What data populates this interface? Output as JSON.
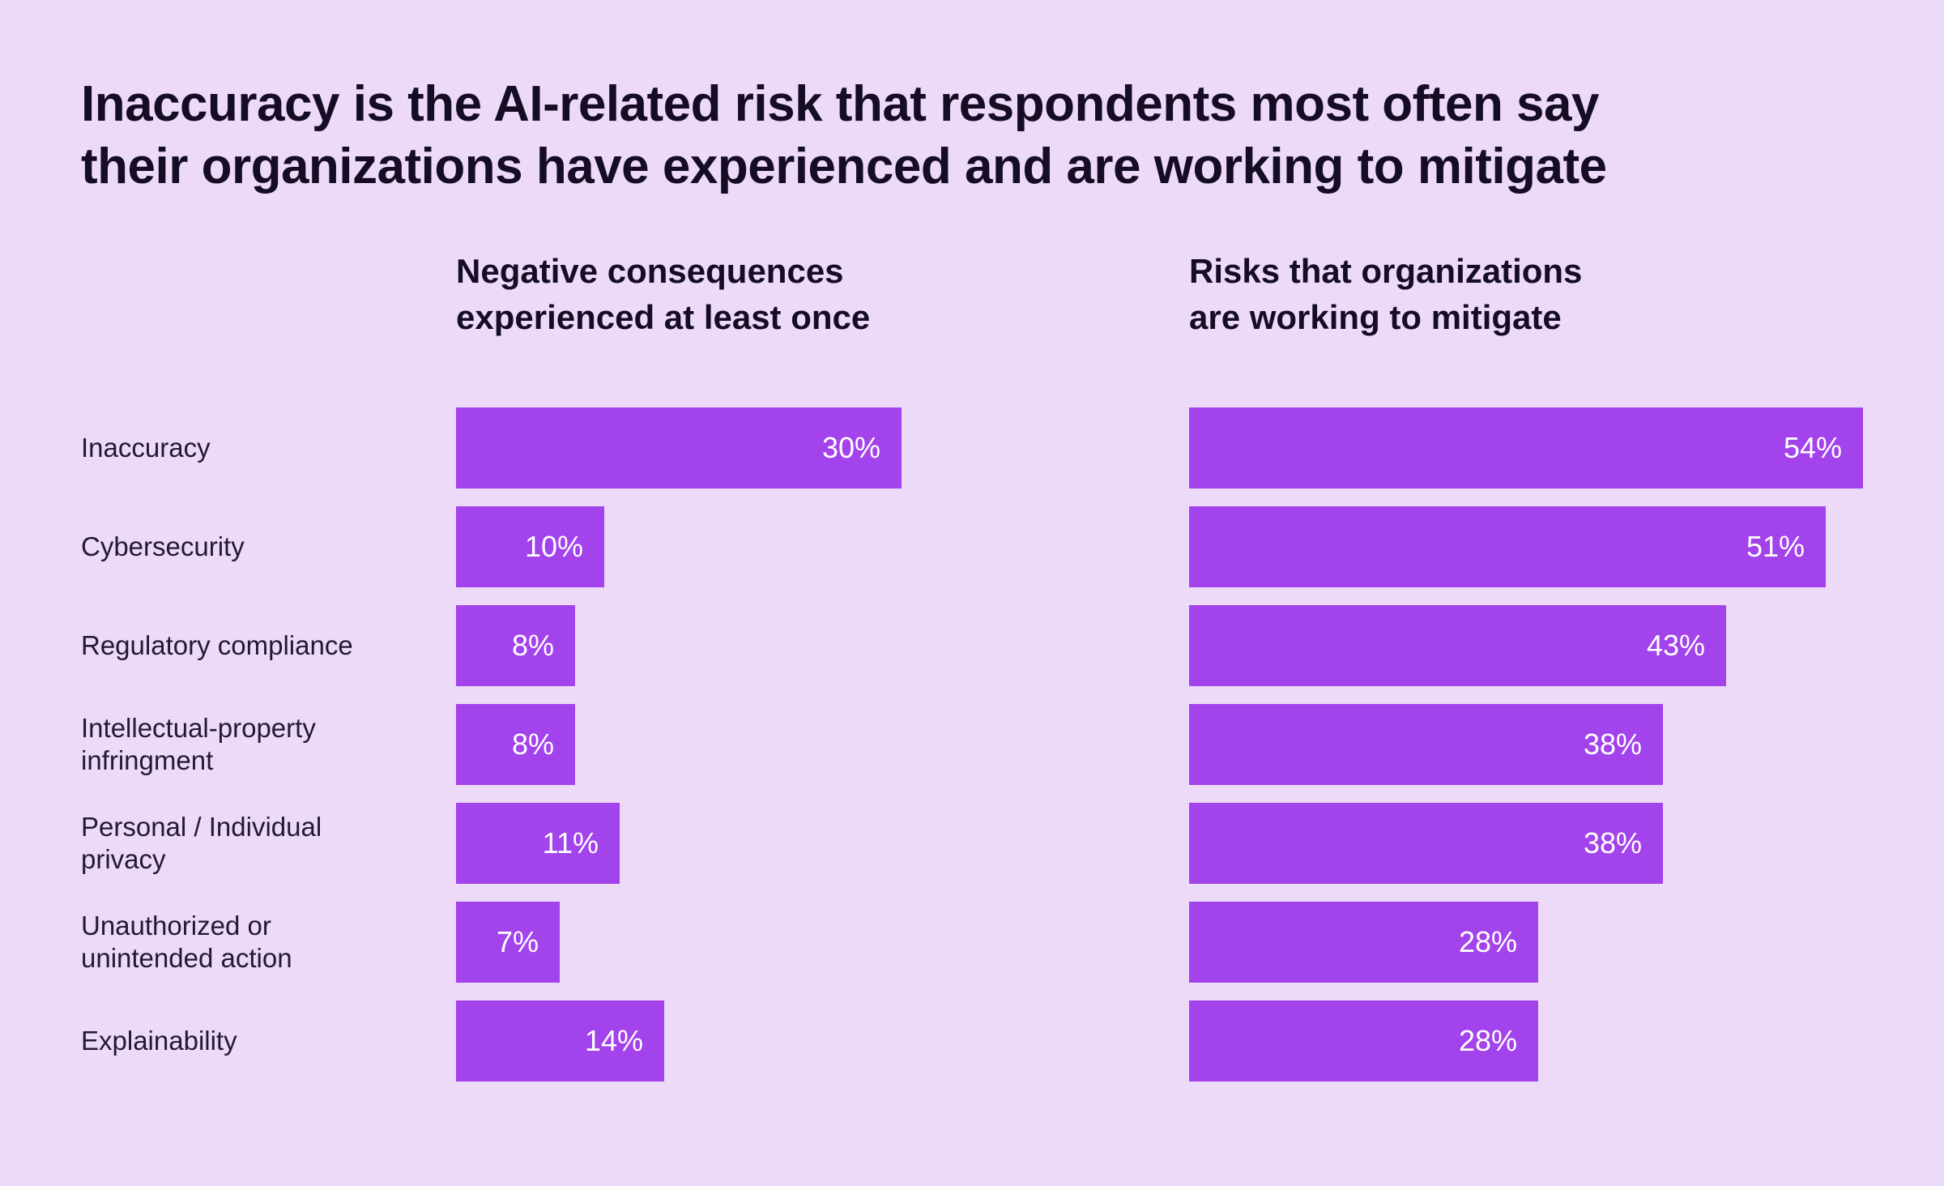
{
  "page": {
    "background_color": "#EDDAF8",
    "bar_color": "#A343EB",
    "text_color": "#150D24",
    "value_text_color": "#FFFFFF"
  },
  "title": {
    "line1": "Inaccuracy is the AI-related risk that respondents most often say",
    "line2": "their organizations have experienced and are working to mitigate"
  },
  "chart_data": {
    "type": "bar",
    "orientation": "horizontal",
    "title": "Inaccuracy is the AI-related risk that respondents most often say their organizations have experienced and are working to mitigate",
    "categories": [
      "Inaccuracy",
      "Cybersecurity",
      "Regulatory compliance",
      "Intellectual-property infringment",
      "Personal / Individual privacy",
      "Unauthorized or unintended action",
      "Explainability"
    ],
    "series": [
      {
        "name": "Negative consequences experienced at least once",
        "header_lines": [
          "Negative consequences",
          "experienced at least once"
        ],
        "values": [
          30,
          10,
          8,
          8,
          11,
          7,
          14
        ],
        "labels": [
          "30%",
          "10%",
          "8%",
          "8%",
          "11%",
          "7%",
          "14%"
        ],
        "axis_range": [
          0,
          30
        ]
      },
      {
        "name": "Risks that organizations are working to mitigate",
        "header_lines": [
          "Risks that organizations",
          "are working to mitigate"
        ],
        "values": [
          54,
          51,
          43,
          38,
          38,
          28,
          28
        ],
        "labels": [
          "54%",
          "51%",
          "43%",
          "38%",
          "38%",
          "28%",
          "28%"
        ],
        "axis_range": [
          0,
          54
        ]
      }
    ],
    "value_suffix": "%",
    "grid": false,
    "legend": "none"
  }
}
